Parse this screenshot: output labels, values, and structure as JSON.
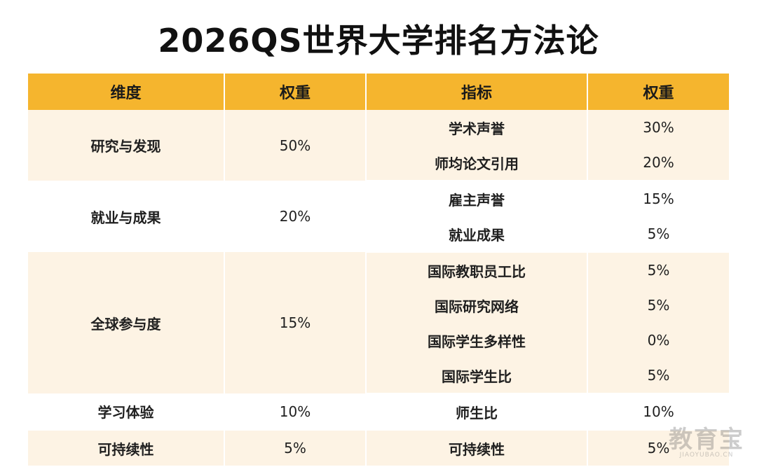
{
  "title": "2026QS世界大学排名方法论",
  "headers": {
    "dimension": "维度",
    "weight": "权重",
    "indicator": "指标",
    "indicator_weight": "权重"
  },
  "groups": [
    {
      "dimension": "研究与发现",
      "weight": "50%",
      "indicators": [
        {
          "name": "学术声誉",
          "weight": "30%"
        },
        {
          "name": "师均论文引用",
          "weight": "20%"
        }
      ]
    },
    {
      "dimension": "就业与成果",
      "weight": "20%",
      "indicators": [
        {
          "name": "雇主声誉",
          "weight": "15%"
        },
        {
          "name": "就业成果",
          "weight": "5%"
        }
      ]
    },
    {
      "dimension": "全球参与度",
      "weight": "15%",
      "indicators": [
        {
          "name": "国际教职员工比",
          "weight": "5%"
        },
        {
          "name": "国际研究网络",
          "weight": "5%"
        },
        {
          "name": "国际学生多样性",
          "weight": "0%"
        },
        {
          "name": "国际学生比",
          "weight": "5%"
        }
      ]
    },
    {
      "dimension": "学习体验",
      "weight": "10%",
      "indicators": [
        {
          "name": "师生比",
          "weight": "10%"
        }
      ]
    },
    {
      "dimension": "可持续性",
      "weight": "5%",
      "indicators": [
        {
          "name": "可持续性",
          "weight": "5%"
        }
      ]
    }
  ],
  "watermark": {
    "main": "教育宝",
    "sub": "JIAOYUBAO.CN"
  },
  "colors": {
    "header_bg": "#f5b52e",
    "shade_bg": "#fdf3e4"
  }
}
